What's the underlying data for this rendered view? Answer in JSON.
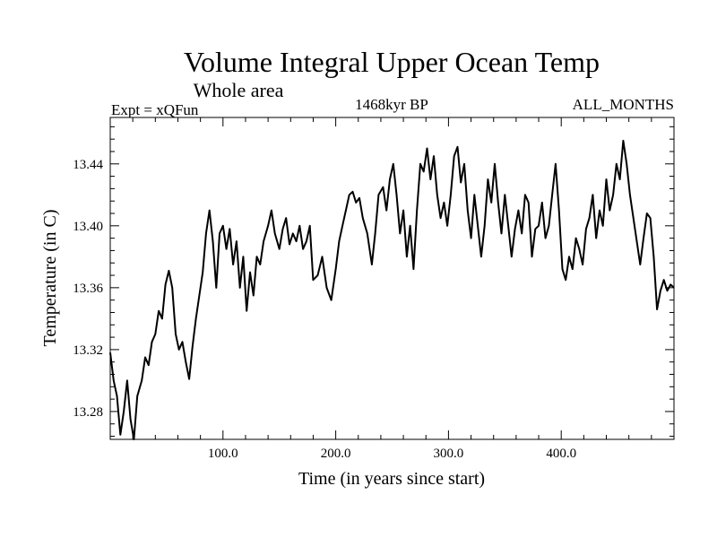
{
  "chart_data": {
    "type": "line",
    "title": "Volume Integral Upper Ocean Temp",
    "subtitle": "Whole area",
    "annotations": {
      "experiment": "Expt = xQFun",
      "period": "1468kyr BP",
      "months": "ALL_MONTHS"
    },
    "xlabel": "Time (in years since start)",
    "ylabel": "Temperature (in C)",
    "xlim": [
      0,
      500
    ],
    "ylim": [
      13.262,
      13.47
    ],
    "x_ticks": [
      100,
      200,
      300,
      400
    ],
    "x_tick_labels": [
      "100.0",
      "200.0",
      "300.0",
      "400.0"
    ],
    "y_ticks": [
      13.28,
      13.32,
      13.36,
      13.4,
      13.44
    ],
    "y_tick_labels": [
      "13.28",
      "13.32",
      "13.36",
      "13.40",
      "13.44"
    ],
    "grid": false,
    "series": [
      {
        "name": "Temperature",
        "color": "#000000",
        "points": [
          [
            0,
            13.318
          ],
          [
            3,
            13.3
          ],
          [
            6,
            13.29
          ],
          [
            9,
            13.265
          ],
          [
            12,
            13.28
          ],
          [
            15,
            13.3
          ],
          [
            18,
            13.275
          ],
          [
            21,
            13.262
          ],
          [
            24,
            13.29
          ],
          [
            28,
            13.3
          ],
          [
            31,
            13.315
          ],
          [
            34,
            13.31
          ],
          [
            37,
            13.325
          ],
          [
            40,
            13.33
          ],
          [
            43,
            13.345
          ],
          [
            46,
            13.34
          ],
          [
            49,
            13.362
          ],
          [
            52,
            13.371
          ],
          [
            55,
            13.36
          ],
          [
            58,
            13.33
          ],
          [
            61,
            13.32
          ],
          [
            64,
            13.325
          ],
          [
            67,
            13.312
          ],
          [
            70,
            13.301
          ],
          [
            73,
            13.322
          ],
          [
            76,
            13.34
          ],
          [
            79,
            13.355
          ],
          [
            82,
            13.37
          ],
          [
            85,
            13.395
          ],
          [
            88,
            13.41
          ],
          [
            91,
            13.39
          ],
          [
            94,
            13.36
          ],
          [
            97,
            13.395
          ],
          [
            100,
            13.4
          ],
          [
            103,
            13.385
          ],
          [
            106,
            13.398
          ],
          [
            109,
            13.375
          ],
          [
            112,
            13.39
          ],
          [
            115,
            13.36
          ],
          [
            118,
            13.38
          ],
          [
            121,
            13.345
          ],
          [
            124,
            13.37
          ],
          [
            127,
            13.355
          ],
          [
            130,
            13.38
          ],
          [
            133,
            13.375
          ],
          [
            136,
            13.39
          ],
          [
            140,
            13.4
          ],
          [
            143,
            13.41
          ],
          [
            146,
            13.395
          ],
          [
            150,
            13.385
          ],
          [
            153,
            13.398
          ],
          [
            156,
            13.405
          ],
          [
            159,
            13.388
          ],
          [
            162,
            13.395
          ],
          [
            165,
            13.39
          ],
          [
            168,
            13.4
          ],
          [
            171,
            13.385
          ],
          [
            174,
            13.39
          ],
          [
            177,
            13.4
          ],
          [
            180,
            13.365
          ],
          [
            184,
            13.368
          ],
          [
            188,
            13.38
          ],
          [
            192,
            13.36
          ],
          [
            196,
            13.352
          ],
          [
            200,
            13.372
          ],
          [
            203,
            13.39
          ],
          [
            206,
            13.4
          ],
          [
            209,
            13.41
          ],
          [
            212,
            13.42
          ],
          [
            215,
            13.422
          ],
          [
            218,
            13.415
          ],
          [
            221,
            13.418
          ],
          [
            224,
            13.405
          ],
          [
            228,
            13.395
          ],
          [
            232,
            13.375
          ],
          [
            235,
            13.395
          ],
          [
            238,
            13.42
          ],
          [
            242,
            13.425
          ],
          [
            245,
            13.41
          ],
          [
            248,
            13.43
          ],
          [
            251,
            13.44
          ],
          [
            254,
            13.42
          ],
          [
            257,
            13.395
          ],
          [
            260,
            13.41
          ],
          [
            263,
            13.38
          ],
          [
            266,
            13.4
          ],
          [
            269,
            13.372
          ],
          [
            272,
            13.41
          ],
          [
            275,
            13.44
          ],
          [
            278,
            13.435
          ],
          [
            281,
            13.45
          ],
          [
            284,
            13.43
          ],
          [
            287,
            13.445
          ],
          [
            290,
            13.42
          ],
          [
            293,
            13.405
          ],
          [
            296,
            13.415
          ],
          [
            299,
            13.4
          ],
          [
            302,
            13.42
          ],
          [
            305,
            13.445
          ],
          [
            308,
            13.451
          ],
          [
            311,
            13.428
          ],
          [
            314,
            13.44
          ],
          [
            317,
            13.41
          ],
          [
            320,
            13.392
          ],
          [
            323,
            13.42
          ],
          [
            326,
            13.4
          ],
          [
            329,
            13.38
          ],
          [
            332,
            13.4
          ],
          [
            335,
            13.43
          ],
          [
            338,
            13.415
          ],
          [
            341,
            13.44
          ],
          [
            344,
            13.415
          ],
          [
            347,
            13.395
          ],
          [
            350,
            13.42
          ],
          [
            353,
            13.4
          ],
          [
            356,
            13.38
          ],
          [
            359,
            13.398
          ],
          [
            362,
            13.41
          ],
          [
            365,
            13.395
          ],
          [
            368,
            13.42
          ],
          [
            371,
            13.415
          ],
          [
            374,
            13.38
          ],
          [
            377,
            13.398
          ],
          [
            380,
            13.4
          ],
          [
            383,
            13.415
          ],
          [
            386,
            13.392
          ],
          [
            389,
            13.4
          ],
          [
            392,
            13.42
          ],
          [
            395,
            13.44
          ],
          [
            398,
            13.41
          ],
          [
            401,
            13.372
          ],
          [
            404,
            13.365
          ],
          [
            407,
            13.38
          ],
          [
            410,
            13.372
          ],
          [
            413,
            13.392
          ],
          [
            416,
            13.385
          ],
          [
            419,
            13.375
          ],
          [
            422,
            13.398
          ],
          [
            425,
            13.405
          ],
          [
            428,
            13.42
          ],
          [
            431,
            13.392
          ],
          [
            434,
            13.41
          ],
          [
            437,
            13.4
          ],
          [
            440,
            13.43
          ],
          [
            443,
            13.41
          ],
          [
            446,
            13.42
          ],
          [
            449,
            13.44
          ],
          [
            452,
            13.43
          ],
          [
            455,
            13.455
          ],
          [
            458,
            13.44
          ],
          [
            461,
            13.42
          ],
          [
            464,
            13.405
          ],
          [
            467,
            13.39
          ],
          [
            470,
            13.375
          ],
          [
            473,
            13.392
          ],
          [
            476,
            13.408
          ],
          [
            479,
            13.405
          ],
          [
            482,
            13.38
          ],
          [
            485,
            13.346
          ],
          [
            488,
            13.358
          ],
          [
            491,
            13.365
          ],
          [
            494,
            13.358
          ],
          [
            497,
            13.362
          ],
          [
            500,
            13.36
          ]
        ]
      }
    ]
  }
}
